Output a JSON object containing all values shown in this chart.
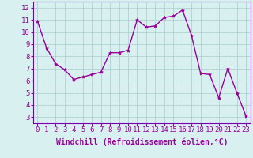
{
  "x": [
    0,
    1,
    2,
    3,
    4,
    5,
    6,
    7,
    8,
    9,
    10,
    11,
    12,
    13,
    14,
    15,
    16,
    17,
    18,
    19,
    20,
    21,
    22,
    23
  ],
  "y": [
    10.9,
    8.7,
    7.4,
    6.9,
    6.1,
    6.3,
    6.5,
    6.7,
    8.3,
    8.3,
    8.5,
    11.0,
    10.4,
    10.5,
    11.2,
    11.3,
    11.8,
    9.7,
    6.6,
    6.5,
    4.6,
    7.0,
    5.0,
    3.1
  ],
  "line_color": "#990099",
  "marker": "*",
  "marker_size": 3,
  "bg_color": "#d8f0f0",
  "grid_color": "#aacccc",
  "xlabel": "Windchill (Refroidissement éolien,°C)",
  "xlabel_color": "#990099",
  "xlabel_fontsize": 7,
  "ylabel_ticks": [
    3,
    4,
    5,
    6,
    7,
    8,
    9,
    10,
    11,
    12
  ],
  "xlim": [
    -0.5,
    23.5
  ],
  "ylim": [
    2.5,
    12.5
  ],
  "tick_fontsize": 6.5,
  "tick_color": "#990099",
  "spine_color": "#7700aa",
  "linewidth": 1.0,
  "grid_linewidth": 0.5
}
